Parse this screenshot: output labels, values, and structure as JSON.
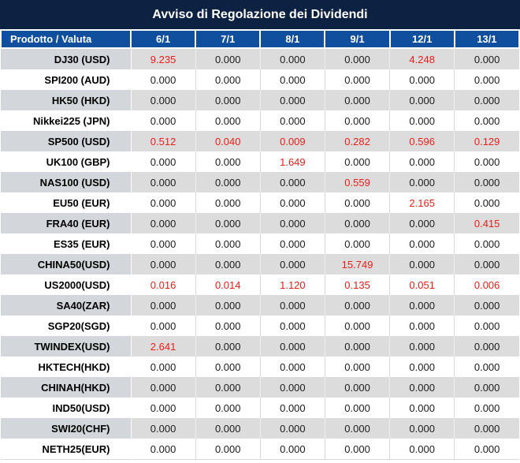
{
  "title": "Avviso di Regolazione dei Dividendi",
  "table": {
    "product_header": "Prodotto / Valuta",
    "date_headers": [
      "6/1",
      "7/1",
      "8/1",
      "9/1",
      "12/1",
      "13/1"
    ],
    "rows": [
      {
        "product": "DJ30 (USD)",
        "values": [
          "9.235",
          "0.000",
          "0.000",
          "0.000",
          "4.248",
          "0.000"
        ],
        "red": [
          0,
          4
        ]
      },
      {
        "product": "SPI200 (AUD)",
        "values": [
          "0.000",
          "0.000",
          "0.000",
          "0.000",
          "0.000",
          "0.000"
        ],
        "red": []
      },
      {
        "product": "HK50 (HKD)",
        "values": [
          "0.000",
          "0.000",
          "0.000",
          "0.000",
          "0.000",
          "0.000"
        ],
        "red": []
      },
      {
        "product": "Nikkei225 (JPN)",
        "values": [
          "0.000",
          "0.000",
          "0.000",
          "0.000",
          "0.000",
          "0.000"
        ],
        "red": []
      },
      {
        "product": "SP500 (USD)",
        "values": [
          "0.512",
          "0.040",
          "0.009",
          "0.282",
          "0.596",
          "0.129"
        ],
        "red": [
          0,
          1,
          2,
          3,
          4,
          5
        ]
      },
      {
        "product": "UK100 (GBP)",
        "values": [
          "0.000",
          "0.000",
          "1.649",
          "0.000",
          "0.000",
          "0.000"
        ],
        "red": [
          2
        ]
      },
      {
        "product": "NAS100 (USD)",
        "values": [
          "0.000",
          "0.000",
          "0.000",
          "0.559",
          "0.000",
          "0.000"
        ],
        "red": [
          3
        ]
      },
      {
        "product": "EU50 (EUR)",
        "values": [
          "0.000",
          "0.000",
          "0.000",
          "0.000",
          "2.165",
          "0.000"
        ],
        "red": [
          4
        ]
      },
      {
        "product": "FRA40 (EUR)",
        "values": [
          "0.000",
          "0.000",
          "0.000",
          "0.000",
          "0.000",
          "0.415"
        ],
        "red": [
          5
        ]
      },
      {
        "product": "ES35 (EUR)",
        "values": [
          "0.000",
          "0.000",
          "0.000",
          "0.000",
          "0.000",
          "0.000"
        ],
        "red": []
      },
      {
        "product": "CHINA50(USD)",
        "values": [
          "0.000",
          "0.000",
          "0.000",
          "15.749",
          "0.000",
          "0.000"
        ],
        "red": [
          3
        ]
      },
      {
        "product": "US2000(USD)",
        "values": [
          "0.016",
          "0.014",
          "1.120",
          "0.135",
          "0.051",
          "0.006"
        ],
        "red": [
          0,
          1,
          2,
          3,
          4,
          5
        ]
      },
      {
        "product": "SA40(ZAR)",
        "values": [
          "0.000",
          "0.000",
          "0.000",
          "0.000",
          "0.000",
          "0.000"
        ],
        "red": []
      },
      {
        "product": "SGP20(SGD)",
        "values": [
          "0.000",
          "0.000",
          "0.000",
          "0.000",
          "0.000",
          "0.000"
        ],
        "red": []
      },
      {
        "product": "TWINDEX(USD)",
        "values": [
          "2.641",
          "0.000",
          "0.000",
          "0.000",
          "0.000",
          "0.000"
        ],
        "red": [
          0
        ]
      },
      {
        "product": "HKTECH(HKD)",
        "values": [
          "0.000",
          "0.000",
          "0.000",
          "0.000",
          "0.000",
          "0.000"
        ],
        "red": []
      },
      {
        "product": "CHINAH(HKD)",
        "values": [
          "0.000",
          "0.000",
          "0.000",
          "0.000",
          "0.000",
          "0.000"
        ],
        "red": []
      },
      {
        "product": "IND50(USD)",
        "values": [
          "0.000",
          "0.000",
          "0.000",
          "0.000",
          "0.000",
          "0.000"
        ],
        "red": []
      },
      {
        "product": "SWI20(CHF)",
        "values": [
          "0.000",
          "0.000",
          "0.000",
          "0.000",
          "0.000",
          "0.000"
        ],
        "red": []
      },
      {
        "product": "NETH25(EUR)",
        "values": [
          "0.000",
          "0.000",
          "0.000",
          "0.000",
          "0.000",
          "0.000"
        ],
        "red": []
      }
    ]
  },
  "colors": {
    "title_bar_bg": "#0d2243",
    "header_bg": "#104f9e",
    "row_alt_bg": "#dcdcdc",
    "row_alt_product_bg": "#d3d6da",
    "highlight_value": "#e81e19",
    "normal_value": "#1b1b1b"
  }
}
